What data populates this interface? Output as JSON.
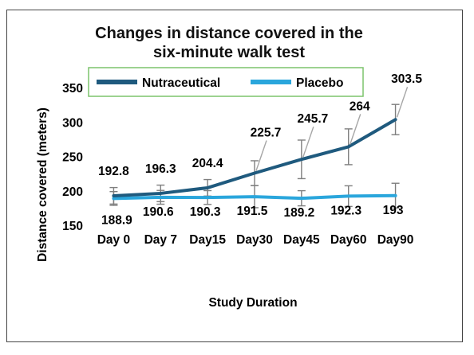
{
  "chart_data": {
    "type": "line",
    "title": [
      "Changes in distance covered in the",
      "six-minute walk test"
    ],
    "xlabel": "Study Duration",
    "ylabel": "Distance covered (meters)",
    "categories": [
      "Day 0",
      "Day 7",
      "Day15",
      "Day30",
      "Day45",
      "Day60",
      "Day90"
    ],
    "ylim": [
      150,
      350
    ],
    "yticks": [
      150,
      200,
      250,
      300,
      350
    ],
    "legend_position": "top",
    "series": [
      {
        "name": "Nutraceutical",
        "color": "#1f5a7e",
        "values": [
          192.8,
          196.3,
          204.4,
          225.7,
          245.7,
          264,
          303.5
        ],
        "labels": [
          "192.8",
          "196.3",
          "204.4",
          "225.7",
          "245.7",
          "264",
          "303.5"
        ],
        "error": [
          12,
          12,
          12,
          18,
          28,
          26,
          22
        ]
      },
      {
        "name": "Placebo",
        "color": "#2aa6dc",
        "values": [
          188.9,
          190.6,
          190.3,
          191.5,
          189.2,
          192.3,
          193
        ],
        "labels": [
          "188.9",
          "190.6",
          "190.3",
          "191.5",
          "189.2",
          "192.3",
          "193"
        ],
        "error": [
          10,
          10,
          10,
          16,
          11,
          15,
          18
        ]
      }
    ]
  }
}
